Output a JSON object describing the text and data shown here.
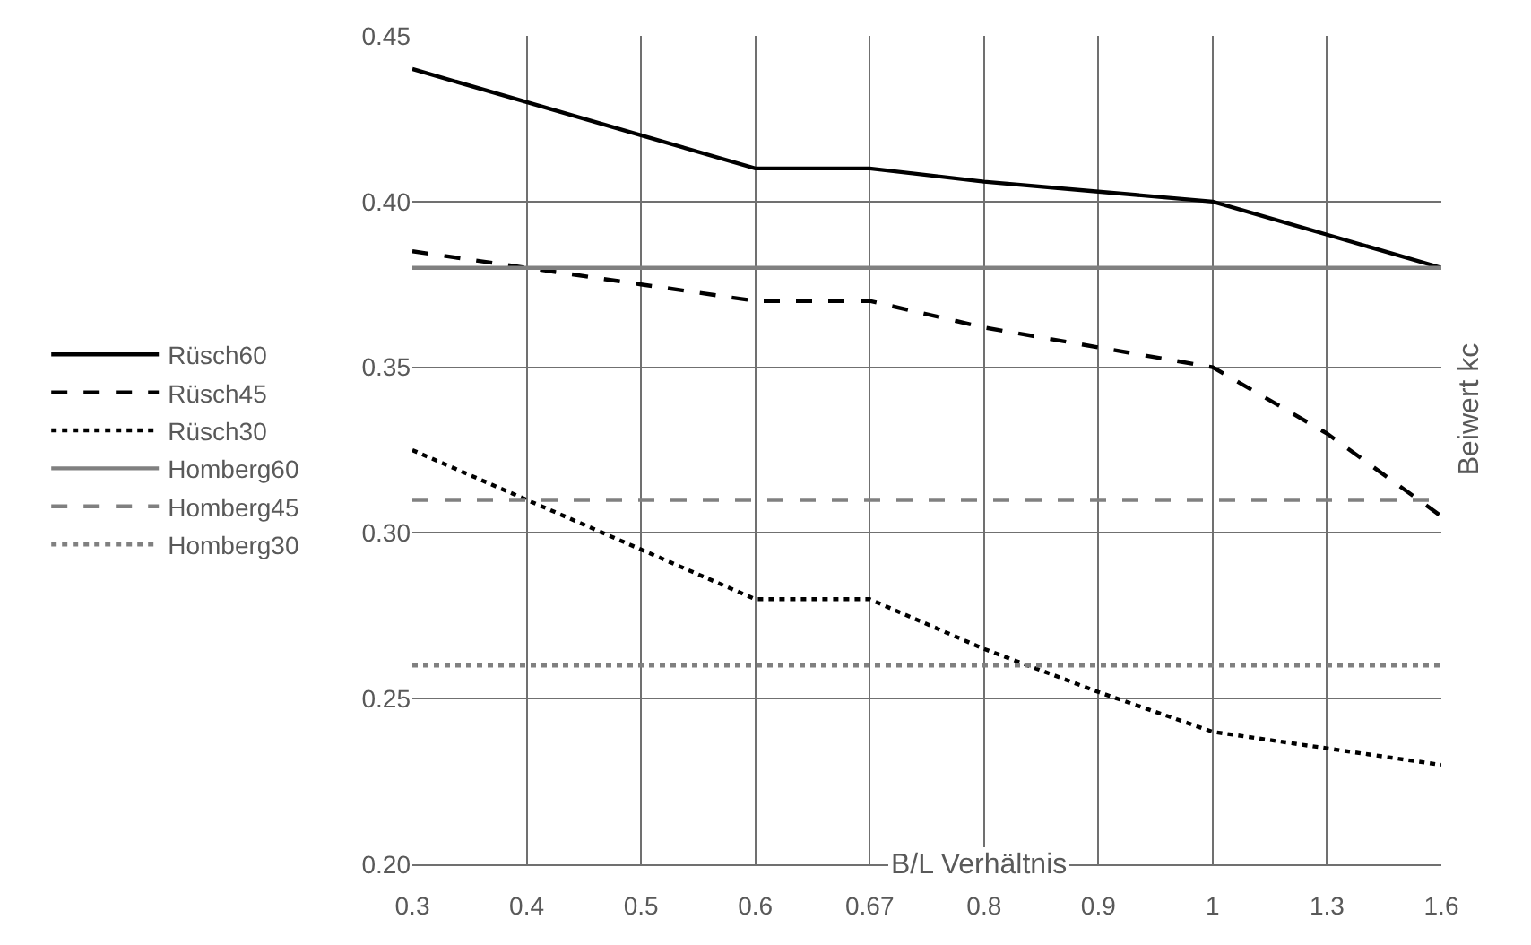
{
  "chart_data": {
    "type": "line",
    "xlabel": "B/L Verhältnis",
    "ylabel": "Beiwert kc",
    "categories": [
      "0.3",
      "0.4",
      "0.5",
      "0.6",
      "0.67",
      "0.8",
      "0.9",
      "1",
      "1.3",
      "1.6"
    ],
    "series": [
      {
        "name": "Rüsch60",
        "color": "#000000",
        "line_style": "solid",
        "values": [
          0.44,
          0.43,
          0.42,
          0.41,
          0.41,
          0.406,
          0.403,
          0.4,
          0.39,
          0.38
        ]
      },
      {
        "name": "Rüsch45",
        "color": "#000000",
        "line_style": "dashed",
        "values": [
          0.385,
          0.38,
          0.375,
          0.37,
          0.37,
          0.362,
          0.356,
          0.35,
          0.33,
          0.305
        ]
      },
      {
        "name": "Rüsch30",
        "color": "#000000",
        "line_style": "dotted",
        "values": [
          0.325,
          0.31,
          0.295,
          0.28,
          0.28,
          0.265,
          0.252,
          0.24,
          0.235,
          0.23
        ]
      },
      {
        "name": "Homberg60",
        "color": "#808080",
        "line_style": "solid",
        "values": [
          0.38,
          0.38,
          0.38,
          0.38,
          0.38,
          0.38,
          0.38,
          0.38,
          0.38,
          0.38
        ]
      },
      {
        "name": "Homberg45",
        "color": "#808080",
        "line_style": "dashed",
        "values": [
          0.31,
          0.31,
          0.31,
          0.31,
          0.31,
          0.31,
          0.31,
          0.31,
          0.31,
          0.31
        ]
      },
      {
        "name": "Homberg30",
        "color": "#808080",
        "line_style": "dotted",
        "values": [
          0.26,
          0.26,
          0.26,
          0.26,
          0.26,
          0.26,
          0.26,
          0.26,
          0.26,
          0.26
        ]
      }
    ],
    "ylim": [
      0.2,
      0.45
    ],
    "yticks": [
      {
        "value": 0.2,
        "label": "0.20"
      },
      {
        "value": 0.25,
        "label": "0.25"
      },
      {
        "value": 0.3,
        "label": "0.30"
      },
      {
        "value": 0.35,
        "label": "0.35"
      },
      {
        "value": 0.4,
        "label": "0.40"
      },
      {
        "value": 0.45,
        "label": "0.45"
      }
    ],
    "grid": true,
    "legend": "left",
    "marker": "none"
  }
}
